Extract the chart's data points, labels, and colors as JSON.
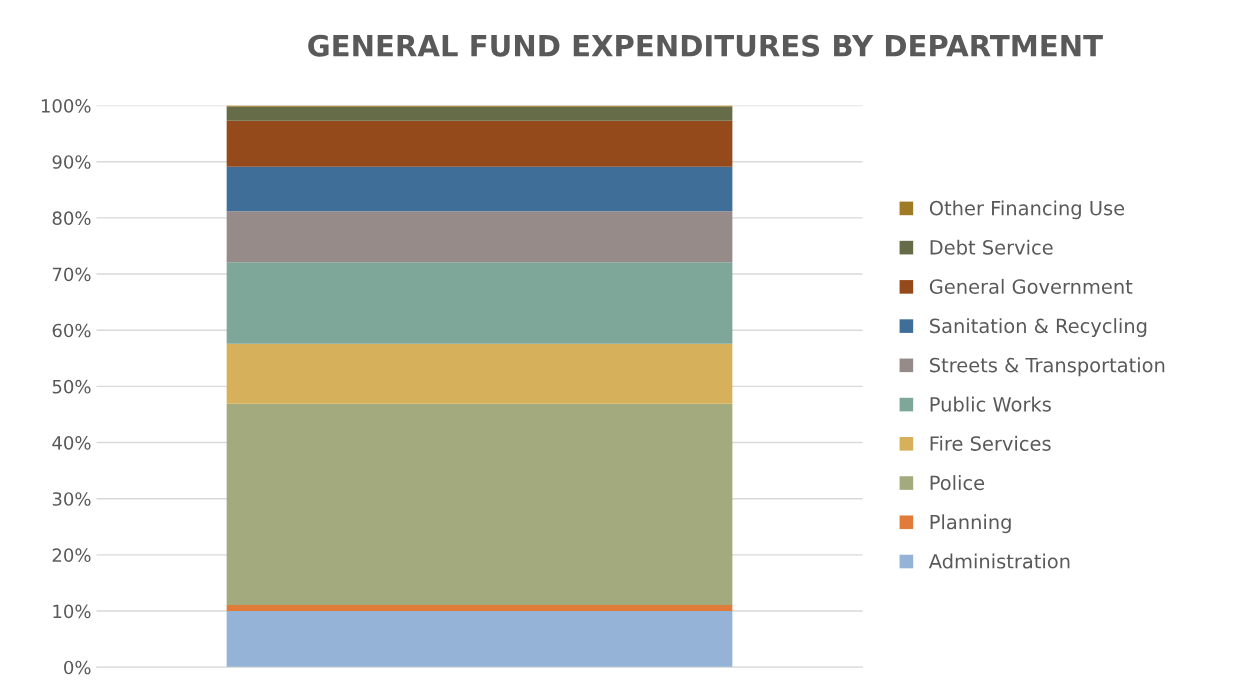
{
  "chart_data": {
    "type": "bar",
    "title": "GENERAL FUND EXPENDITURES BY DEPARTMENT",
    "categories": [
      null
    ],
    "stacked": true,
    "series": [
      {
        "name": "Administration",
        "color": "#95b3d7",
        "values": [
          10.0
        ]
      },
      {
        "name": "Planning",
        "color": "#e07b39",
        "values": [
          1.1
        ]
      },
      {
        "name": "Police",
        "color": "#a3aa7e",
        "values": [
          35.8
        ]
      },
      {
        "name": "Fire Services",
        "color": "#d7b05b",
        "values": [
          10.7
        ]
      },
      {
        "name": "Public Works",
        "color": "#7ea699",
        "values": [
          14.5
        ]
      },
      {
        "name": "Streets & Transportation",
        "color": "#968b89",
        "values": [
          9.1
        ]
      },
      {
        "name": "Sanitation & Recycling",
        "color": "#3f6f99",
        "values": [
          7.9
        ]
      },
      {
        "name": "General Government",
        "color": "#944a1a",
        "values": [
          8.2
        ]
      },
      {
        "name": "Debt Service",
        "color": "#666c47",
        "values": [
          2.5
        ]
      },
      {
        "name": "Other Financing Use",
        "color": "#a07b25",
        "values": [
          0.2
        ]
      }
    ],
    "ylim": [
      0,
      100
    ],
    "yticks": [
      {
        "value": 0,
        "label": "0%"
      },
      {
        "value": 10,
        "label": "10%"
      },
      {
        "value": 20,
        "label": "20%"
      },
      {
        "value": 30,
        "label": "30%"
      },
      {
        "value": 40,
        "label": "40%"
      },
      {
        "value": 50,
        "label": "50%"
      },
      {
        "value": 60,
        "label": "60%"
      },
      {
        "value": 70,
        "label": "70%"
      },
      {
        "value": 80,
        "label": "80%"
      },
      {
        "value": 90,
        "label": "90%"
      },
      {
        "value": 100,
        "label": "100%"
      }
    ],
    "grid": "y",
    "legend": "right"
  }
}
